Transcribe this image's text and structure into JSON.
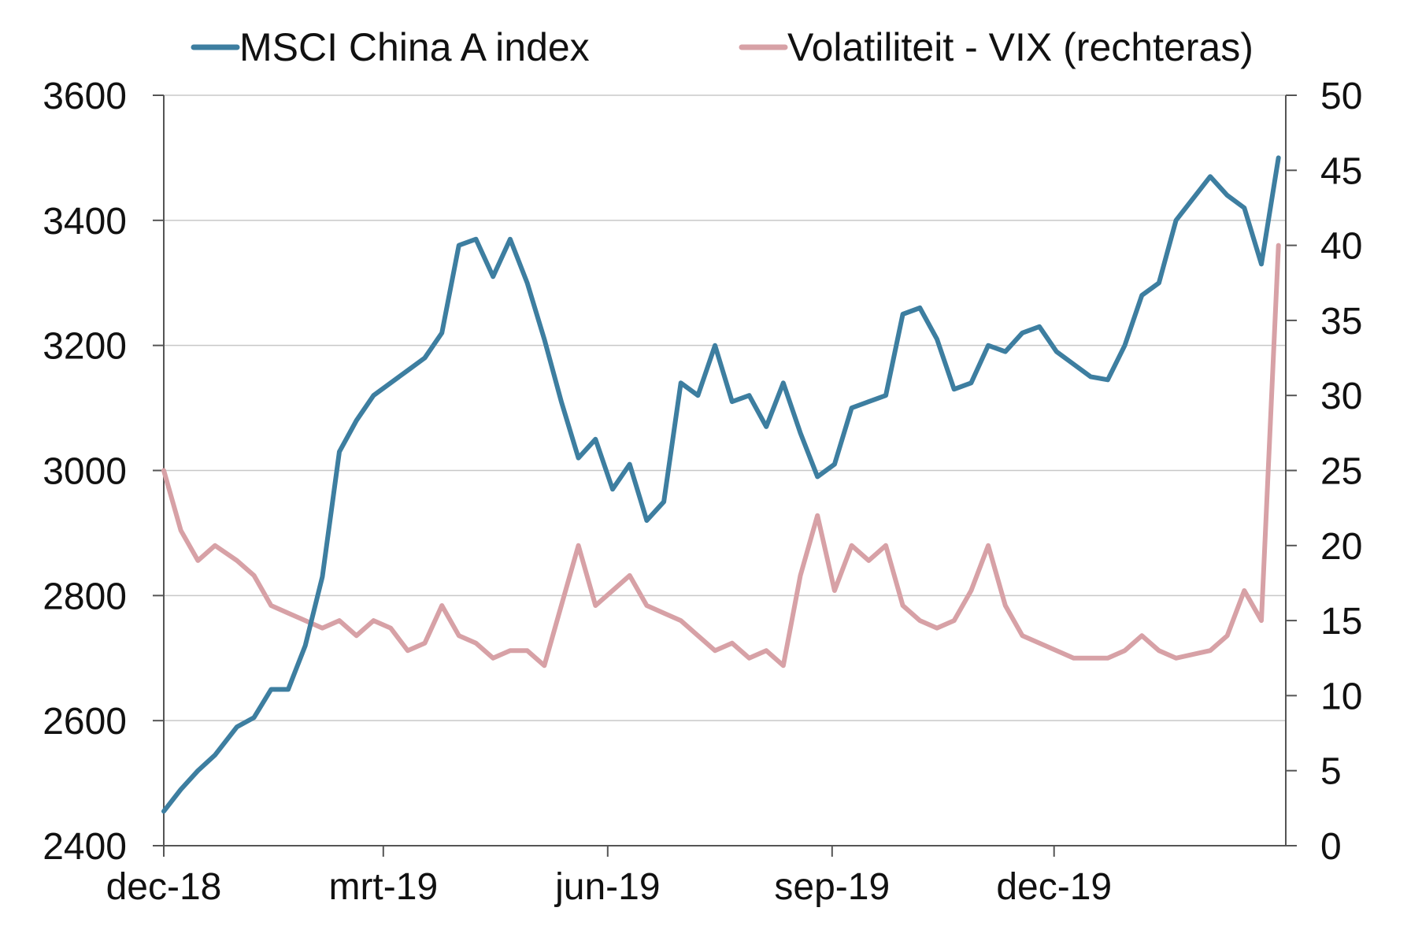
{
  "chart_data": {
    "type": "line",
    "title": "",
    "xlabel": "",
    "ylabel": "",
    "x_ticks": [
      "dec-18",
      "mrt-19",
      "jun-19",
      "sep-19",
      "dec-19"
    ],
    "ylim_left": [
      2400,
      3600
    ],
    "yticks_left": [
      "2400",
      "2600",
      "2800",
      "3000",
      "3200",
      "3400",
      "3600"
    ],
    "ylim_right": [
      0,
      50
    ],
    "yticks_right": [
      "0",
      "5",
      "10",
      "15",
      "20",
      "25",
      "30",
      "35",
      "40",
      "45",
      "50"
    ],
    "grid": "horizontal",
    "legend_position": "top",
    "colors": {
      "msci": "#3d7ea0",
      "vix": "#d7a1a6",
      "grid": "#c8c8c8",
      "axis": "#555555"
    },
    "series": [
      {
        "name": "MSCI China A index",
        "axis": "left",
        "x": [
          "2018-12-01",
          "2018-12-08",
          "2018-12-15",
          "2018-12-22",
          "2018-12-31",
          "2019-01-07",
          "2019-01-14",
          "2019-01-21",
          "2019-01-28",
          "2019-02-04",
          "2019-02-11",
          "2019-02-18",
          "2019-02-25",
          "2019-03-04",
          "2019-03-11",
          "2019-03-18",
          "2019-03-25",
          "2019-04-01",
          "2019-04-08",
          "2019-04-15",
          "2019-04-22",
          "2019-04-29",
          "2019-05-06",
          "2019-05-13",
          "2019-05-20",
          "2019-05-27",
          "2019-06-03",
          "2019-06-10",
          "2019-06-17",
          "2019-06-24",
          "2019-07-01",
          "2019-07-08",
          "2019-07-15",
          "2019-07-22",
          "2019-07-29",
          "2019-08-05",
          "2019-08-12",
          "2019-08-19",
          "2019-08-26",
          "2019-09-02",
          "2019-09-09",
          "2019-09-16",
          "2019-09-23",
          "2019-09-30",
          "2019-10-07",
          "2019-10-14",
          "2019-10-21",
          "2019-10-28",
          "2019-11-04",
          "2019-11-11",
          "2019-11-18",
          "2019-11-25",
          "2019-12-02",
          "2019-12-09",
          "2019-12-16",
          "2019-12-23",
          "2019-12-30",
          "2020-01-06",
          "2020-01-13",
          "2020-01-20",
          "2020-02-03",
          "2020-02-10",
          "2020-02-17",
          "2020-02-24",
          "2020-03-02"
        ],
        "values": [
          2455,
          2490,
          2520,
          2545,
          2590,
          2605,
          2650,
          2650,
          2720,
          2830,
          3030,
          3080,
          3120,
          3140,
          3160,
          3180,
          3220,
          3360,
          3370,
          3310,
          3370,
          3300,
          3210,
          3110,
          3020,
          3050,
          2970,
          3010,
          2920,
          2950,
          3140,
          3120,
          3200,
          3110,
          3120,
          3070,
          3140,
          3060,
          2990,
          3010,
          3100,
          3110,
          3120,
          3250,
          3260,
          3210,
          3130,
          3140,
          3200,
          3190,
          3220,
          3230,
          3190,
          3170,
          3150,
          3145,
          3200,
          3280,
          3300,
          3400,
          3470,
          3440,
          3420,
          3330,
          3500
        ]
      },
      {
        "name": "Volatiliteit - VIX (rechteras)",
        "axis": "right",
        "x": [
          "2018-12-01",
          "2018-12-08",
          "2018-12-15",
          "2018-12-22",
          "2018-12-31",
          "2019-01-07",
          "2019-01-14",
          "2019-01-21",
          "2019-01-28",
          "2019-02-04",
          "2019-02-11",
          "2019-02-18",
          "2019-02-25",
          "2019-03-04",
          "2019-03-11",
          "2019-03-18",
          "2019-03-25",
          "2019-04-01",
          "2019-04-08",
          "2019-04-15",
          "2019-04-22",
          "2019-04-29",
          "2019-05-06",
          "2019-05-13",
          "2019-05-20",
          "2019-05-27",
          "2019-06-03",
          "2019-06-10",
          "2019-06-17",
          "2019-06-24",
          "2019-07-01",
          "2019-07-08",
          "2019-07-15",
          "2019-07-22",
          "2019-07-29",
          "2019-08-05",
          "2019-08-12",
          "2019-08-19",
          "2019-08-26",
          "2019-09-02",
          "2019-09-09",
          "2019-09-16",
          "2019-09-23",
          "2019-09-30",
          "2019-10-07",
          "2019-10-14",
          "2019-10-21",
          "2019-10-28",
          "2019-11-04",
          "2019-11-11",
          "2019-11-18",
          "2019-11-25",
          "2019-12-02",
          "2019-12-09",
          "2019-12-16",
          "2019-12-23",
          "2019-12-30",
          "2020-01-06",
          "2020-01-13",
          "2020-01-20",
          "2020-02-03",
          "2020-02-10",
          "2020-02-17",
          "2020-02-24",
          "2020-03-02"
        ],
        "values": [
          25,
          21,
          19,
          20,
          19,
          18,
          16,
          15.5,
          15,
          14.5,
          15,
          14,
          15,
          14.5,
          13,
          13.5,
          16,
          14,
          13.5,
          12.5,
          13,
          13,
          12,
          16,
          20,
          16,
          17,
          18,
          16,
          15.5,
          15,
          14,
          13,
          13.5,
          12.5,
          13,
          12,
          18,
          22,
          17,
          20,
          19,
          20,
          16,
          15,
          14.5,
          15,
          17,
          20,
          16,
          14,
          13.5,
          13,
          12.5,
          12.5,
          12.5,
          13,
          14,
          13,
          12.5,
          13,
          14,
          17,
          15,
          40
        ]
      }
    ]
  }
}
